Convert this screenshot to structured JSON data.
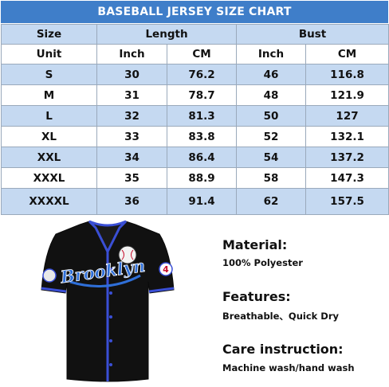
{
  "title": "BASEBALL JERSEY SIZE CHART",
  "table": {
    "header_row1": [
      "Size",
      "Length",
      "Bust"
    ],
    "header_row2": [
      "Unit",
      "Inch",
      "CM",
      "Inch",
      "CM"
    ],
    "rows": [
      {
        "size": "S",
        "length_inch": "30",
        "length_cm": "76.2",
        "bust_inch": "46",
        "bust_cm": "116.8"
      },
      {
        "size": "M",
        "length_inch": "31",
        "length_cm": "78.7",
        "bust_inch": "48",
        "bust_cm": "121.9"
      },
      {
        "size": "L",
        "length_inch": "32",
        "length_cm": "81.3",
        "bust_inch": "50",
        "bust_cm": "127"
      },
      {
        "size": "XL",
        "length_inch": "33",
        "length_cm": "83.8",
        "bust_inch": "52",
        "bust_cm": "132.1"
      },
      {
        "size": "XXL",
        "length_inch": "34",
        "length_cm": "86.4",
        "bust_inch": "54",
        "bust_cm": "137.2"
      },
      {
        "size": "XXXL",
        "length_inch": "35",
        "length_cm": "88.9",
        "bust_inch": "58",
        "bust_cm": "147.3"
      },
      {
        "size": "XXXXL",
        "length_inch": "36",
        "length_cm": "91.4",
        "bust_inch": "62",
        "bust_cm": "157.5"
      }
    ]
  },
  "jersey": {
    "script_text": "Brooklyn",
    "sleeve_number": "4",
    "colors": {
      "body": "#111111",
      "trim": "#3a4fd6",
      "script": "#2f6fd8"
    }
  },
  "details": {
    "material_heading": "Material:",
    "material_value": "100% Polyester",
    "features_heading": "Features:",
    "features_value": "Breathable、Quick Dry",
    "care_heading": "Care instruction:",
    "care_value": "Machine wash/hand wash"
  },
  "colors": {
    "header_bar": "#3f7ec9",
    "row_blue": "#c5d9f1",
    "row_white": "#ffffff"
  }
}
